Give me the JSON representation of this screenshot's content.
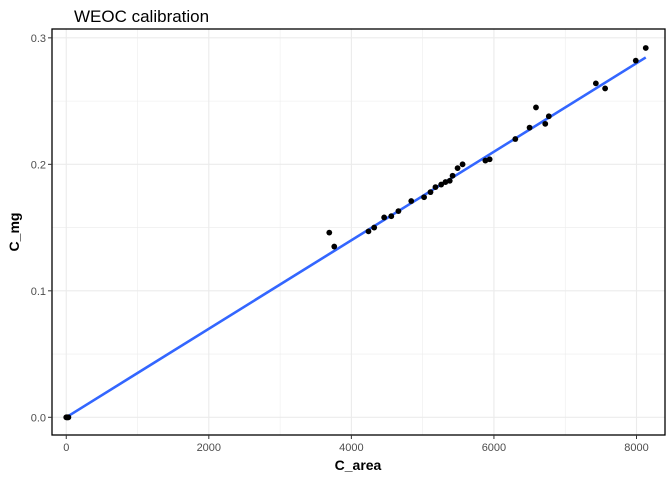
{
  "chart_data": {
    "type": "scatter",
    "title": "WEOC calibration",
    "xlabel": "C_area",
    "ylabel": "C_mg",
    "xlim": [
      -200,
      8400
    ],
    "ylim": [
      -0.014,
      0.307
    ],
    "xticks": [
      0,
      2000,
      4000,
      6000,
      8000
    ],
    "yticks": [
      0.0,
      0.1,
      0.2,
      0.3
    ],
    "xtick_labels": [
      "0",
      "2000",
      "4000",
      "6000",
      "8000"
    ],
    "ytick_labels": [
      "0.0",
      "0.1",
      "0.2",
      "0.3"
    ],
    "grid": true,
    "legend": "none",
    "colors": {
      "points": "#000000",
      "fit_line": "#3366ff",
      "grid": "#ebebeb",
      "border": "#000000"
    },
    "points": [
      {
        "x": 0,
        "y": 0.0
      },
      {
        "x": 10,
        "y": 0.0
      },
      {
        "x": 20,
        "y": 0.0
      },
      {
        "x": 30,
        "y": 0.0
      },
      {
        "x": 3690,
        "y": 0.146
      },
      {
        "x": 3760,
        "y": 0.135
      },
      {
        "x": 4240,
        "y": 0.147
      },
      {
        "x": 4320,
        "y": 0.15
      },
      {
        "x": 4460,
        "y": 0.158
      },
      {
        "x": 4560,
        "y": 0.159
      },
      {
        "x": 4660,
        "y": 0.163
      },
      {
        "x": 4840,
        "y": 0.171
      },
      {
        "x": 5020,
        "y": 0.174
      },
      {
        "x": 5110,
        "y": 0.178
      },
      {
        "x": 5180,
        "y": 0.182
      },
      {
        "x": 5260,
        "y": 0.184
      },
      {
        "x": 5320,
        "y": 0.186
      },
      {
        "x": 5380,
        "y": 0.187
      },
      {
        "x": 5420,
        "y": 0.191
      },
      {
        "x": 5490,
        "y": 0.197
      },
      {
        "x": 5560,
        "y": 0.2
      },
      {
        "x": 5880,
        "y": 0.203
      },
      {
        "x": 5940,
        "y": 0.204
      },
      {
        "x": 6300,
        "y": 0.22
      },
      {
        "x": 6500,
        "y": 0.229
      },
      {
        "x": 6590,
        "y": 0.245
      },
      {
        "x": 6720,
        "y": 0.232
      },
      {
        "x": 6770,
        "y": 0.238
      },
      {
        "x": 7430,
        "y": 0.264
      },
      {
        "x": 7560,
        "y": 0.26
      },
      {
        "x": 7990,
        "y": 0.282
      },
      {
        "x": 8130,
        "y": 0.292
      }
    ],
    "fit_line": {
      "x": [
        0,
        8130
      ],
      "y": [
        0.0,
        0.2845
      ]
    }
  }
}
